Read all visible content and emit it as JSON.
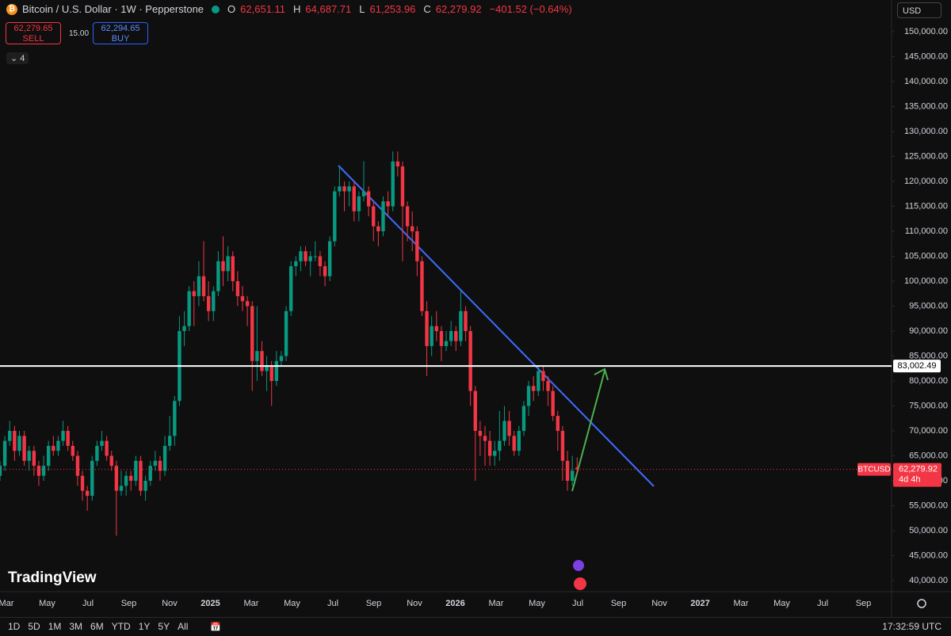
{
  "header": {
    "symbol": "Bitcoin / U.S. Dollar · 1W · Pepperstone",
    "ohlc_labels": [
      "O",
      "H",
      "L",
      "C"
    ],
    "ohlc_values": [
      "62,651.11",
      "64,687.71",
      "61,253.96",
      "62,279.92"
    ],
    "change": "−401.52 (−0.64%)",
    "sell_price": "62,279.65",
    "sell": "SELL",
    "spread": "15.00",
    "buy_price": "62,294.65",
    "buy": "BUY",
    "indicators": "4",
    "currency": "USD"
  },
  "logo": "TradingView",
  "toolbar": {
    "timeframes": [
      "1D",
      "5D",
      "1M",
      "3M",
      "6M",
      "YTD",
      "1Y",
      "5Y",
      "All"
    ],
    "clock": "17:32:59 UTC"
  },
  "chart_data": {
    "type": "candlestick",
    "up_color": "#089981",
    "down_color": "#f23645",
    "grid": false,
    "ylim": [
      38100,
      156350
    ],
    "yticks": [
      {
        "value": 40000,
        "label": "40,000.00"
      },
      {
        "value": 45000,
        "label": "45,000.00"
      },
      {
        "value": 50000,
        "label": "50,000.00"
      },
      {
        "value": 55000,
        "label": "55,000.00"
      },
      {
        "value": 60000,
        "label": "60,000.00"
      },
      {
        "value": 65000,
        "label": "65,000.00"
      },
      {
        "value": 70000,
        "label": "70,000.00"
      },
      {
        "value": 75000,
        "label": "75,000.00"
      },
      {
        "value": 80000,
        "label": "80,000.00"
      },
      {
        "value": 85000,
        "label": "85,000.00"
      },
      {
        "value": 90000,
        "label": "90,000.00"
      },
      {
        "value": 95000,
        "label": "95,000.00"
      },
      {
        "value": 100000,
        "label": "100,000.00"
      },
      {
        "value": 105000,
        "label": "105,000.00"
      },
      {
        "value": 110000,
        "label": "110,000.00"
      },
      {
        "value": 115000,
        "label": "115,000.00"
      },
      {
        "value": 120000,
        "label": "120,000.00"
      },
      {
        "value": 125000,
        "label": "125,000.00"
      },
      {
        "value": 130000,
        "label": "130,000.00"
      },
      {
        "value": 135000,
        "label": "135,000.00"
      },
      {
        "value": 140000,
        "label": "140,000.00"
      },
      {
        "value": 145000,
        "label": "145,000.00"
      },
      {
        "value": 150000,
        "label": "150,000.00"
      }
    ],
    "xticks": [
      "Mar",
      "May",
      "Jul",
      "Sep",
      "Nov",
      "2025",
      "Mar",
      "May",
      "Jul",
      "Sep",
      "Nov",
      "2026",
      "Mar",
      "May",
      "Jul",
      "Sep",
      "Nov",
      "2027",
      "Mar",
      "May",
      "Jul",
      "Sep"
    ],
    "horizontal_line": {
      "value": 83002.49,
      "label": "83,002.49"
    },
    "last_price": {
      "symbol": "BTCUSD",
      "value": 62279.92,
      "label": "62,279.92",
      "countdown": "4d 4h"
    },
    "open": [
      61000,
      63000,
      68000,
      70000,
      66000,
      69000,
      64000,
      66000,
      63000,
      61000,
      63000,
      67000,
      66000,
      68000,
      70000,
      67000,
      65000,
      61000,
      58000,
      57000,
      64000,
      67000,
      68000,
      65000,
      63000,
      58000,
      59000,
      61000,
      60000,
      64000,
      58000,
      60000,
      63000,
      64000,
      62000,
      67000,
      69000,
      76000,
      90000,
      91000,
      98000,
      97000,
      101000,
      97000,
      94000,
      98000,
      104000,
      102000,
      105000,
      100000,
      97000,
      96000,
      95000,
      84000,
      86000,
      82000,
      83000,
      80000,
      84000,
      85000,
      94000,
      103000,
      104000,
      106000,
      104000,
      105000,
      105000,
      103000,
      101000,
      108000,
      118000,
      119000,
      118000,
      119000,
      114000,
      117000,
      118000,
      115000,
      111000,
      110000,
      116000,
      115000,
      124000,
      123000,
      115000,
      111000,
      110000,
      104000,
      94000,
      87000,
      91000,
      90000,
      87000,
      88000,
      90000,
      88000,
      94000,
      90000,
      78000,
      70000,
      69000,
      68000,
      65000,
      66000,
      68000,
      72000,
      69000,
      66000,
      70000,
      75000,
      79000,
      78000,
      82000,
      80000,
      78000,
      73000,
      70000,
      64000,
      60000,
      62651.11
    ],
    "high": [
      64000,
      69000,
      72000,
      71000,
      70000,
      70000,
      67000,
      67000,
      64000,
      65000,
      68000,
      69000,
      69000,
      72000,
      71000,
      68000,
      66000,
      62000,
      59000,
      65000,
      68000,
      70000,
      69000,
      66000,
      64000,
      62000,
      62000,
      62000,
      65000,
      65000,
      61000,
      64000,
      66000,
      65000,
      69000,
      73000,
      77000,
      93000,
      94000,
      99000,
      100000,
      104000,
      108000,
      100000,
      99000,
      106000,
      109000,
      107000,
      106000,
      102000,
      99000,
      97000,
      96000,
      95000,
      88000,
      85000,
      84000,
      86000,
      86000,
      95000,
      104000,
      105000,
      107000,
      107000,
      106000,
      108000,
      106000,
      104000,
      109000,
      119000,
      123000,
      120000,
      120000,
      120000,
      118000,
      124000,
      119000,
      116000,
      112000,
      117000,
      118000,
      126000,
      126000,
      124000,
      116000,
      114000,
      111000,
      105000,
      96000,
      93000,
      94000,
      91000,
      90000,
      92000,
      91000,
      98000,
      95000,
      91000,
      79000,
      72000,
      71000,
      70000,
      68000,
      74000,
      75000,
      74000,
      70000,
      71000,
      76000,
      80000,
      81000,
      83000,
      83000,
      81000,
      79000,
      74000,
      71000,
      66000,
      65000,
      64687.71
    ],
    "low": [
      60000,
      62000,
      67000,
      64000,
      65000,
      63000,
      62000,
      61000,
      59000,
      60000,
      62000,
      65000,
      65000,
      67000,
      66000,
      64000,
      59000,
      56000,
      54000,
      56000,
      63000,
      66000,
      64000,
      62000,
      49000,
      57000,
      57000,
      58000,
      59000,
      57000,
      56000,
      59000,
      62000,
      60000,
      61000,
      66000,
      67000,
      75000,
      87000,
      90000,
      91000,
      95000,
      96000,
      92000,
      92000,
      97000,
      99000,
      100000,
      98000,
      95000,
      94000,
      91000,
      78000,
      80000,
      81000,
      78000,
      75000,
      79000,
      83000,
      84000,
      93000,
      101000,
      102000,
      103000,
      101000,
      104000,
      101000,
      99000,
      100000,
      107000,
      117000,
      114000,
      115000,
      112000,
      112000,
      116000,
      113000,
      108000,
      107000,
      109000,
      113000,
      114000,
      121000,
      104000,
      108000,
      106000,
      101000,
      93000,
      81000,
      85000,
      88000,
      84000,
      86000,
      87000,
      86000,
      87000,
      88000,
      75000,
      60000,
      65000,
      63000,
      63000,
      63000,
      64000,
      67000,
      67000,
      65000,
      65000,
      69000,
      73000,
      76000,
      77000,
      78000,
      75000,
      72000,
      66000,
      60000,
      58000,
      59000,
      61253.96
    ],
    "close": [
      63000,
      68000,
      70000,
      66000,
      69000,
      64000,
      66000,
      63000,
      61000,
      63000,
      67000,
      66000,
      68000,
      70000,
      67000,
      65000,
      61000,
      58000,
      57000,
      64000,
      67000,
      68000,
      65000,
      63000,
      58000,
      59000,
      61000,
      60000,
      64000,
      58000,
      60000,
      63000,
      64000,
      62000,
      67000,
      69000,
      76000,
      90000,
      91000,
      98000,
      97000,
      101000,
      97000,
      94000,
      98000,
      104000,
      102000,
      105000,
      100000,
      97000,
      96000,
      95000,
      84000,
      86000,
      82000,
      83000,
      80000,
      84000,
      85000,
      94000,
      103000,
      104000,
      106000,
      104000,
      105000,
      105000,
      103000,
      101000,
      108000,
      118000,
      119000,
      118000,
      119000,
      114000,
      117000,
      118000,
      115000,
      111000,
      110000,
      116000,
      115000,
      124000,
      123000,
      115000,
      111000,
      110000,
      104000,
      94000,
      87000,
      91000,
      90000,
      87000,
      88000,
      90000,
      88000,
      94000,
      90000,
      78000,
      70000,
      69000,
      68000,
      65000,
      66000,
      68000,
      72000,
      69000,
      66000,
      70000,
      75000,
      79000,
      78000,
      82000,
      80000,
      78000,
      73000,
      70000,
      64000,
      60000,
      62000,
      62279.92
    ]
  }
}
